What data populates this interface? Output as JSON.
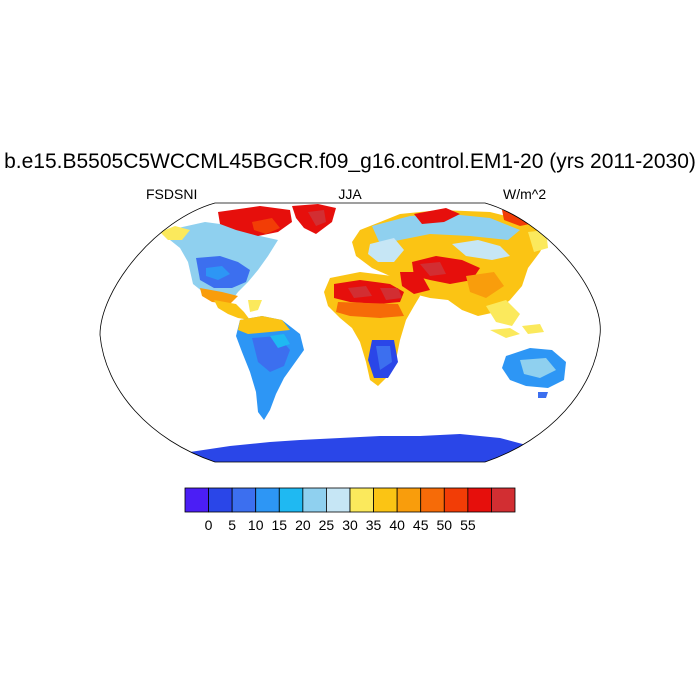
{
  "title": "b.e15.B5505C5WCCML45BGCR.f09_g16.control.EM1-20 (yrs 2011-2030)",
  "left_string": "FSDSNI",
  "center_string": "JJA",
  "right_string": "W/m^2",
  "colorbar": {
    "colors": [
      "#4b1ef5",
      "#2a46e8",
      "#3c6fef",
      "#2d96f5",
      "#1fb9f2",
      "#8fd0ef",
      "#c6e6f5",
      "#fbe95c",
      "#fbc414",
      "#f99d0c",
      "#f66b08",
      "#f23d06",
      "#e60f0c",
      "#d22e32"
    ],
    "labels": [
      "0",
      "5",
      "10",
      "15",
      "20",
      "25",
      "30",
      "35",
      "40",
      "45",
      "50",
      "55"
    ]
  }
}
